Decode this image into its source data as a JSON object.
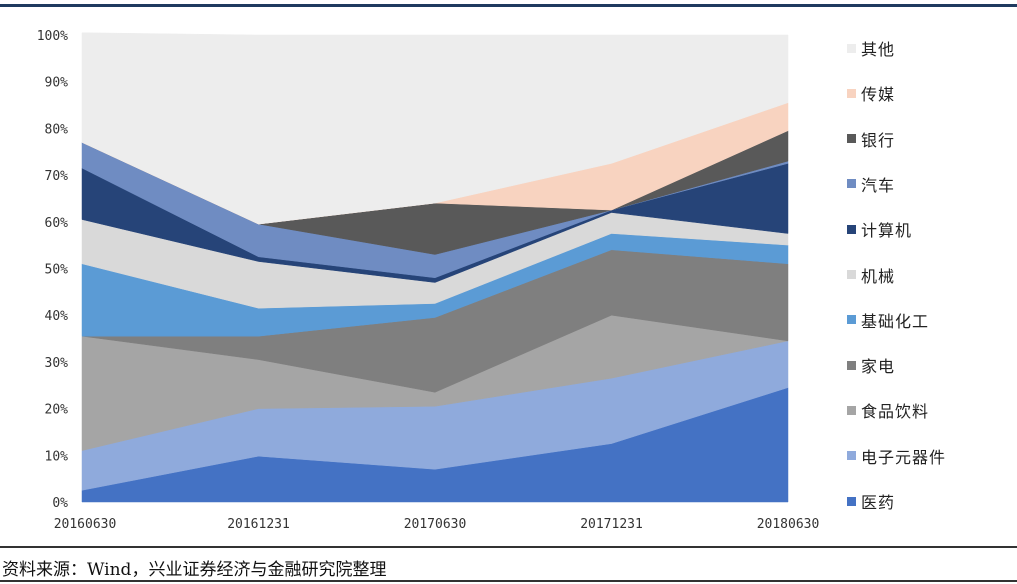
{
  "chart_data": {
    "type": "area",
    "stacked": true,
    "x": [
      "20160630",
      "20161231",
      "20170630",
      "20171231",
      "20180630"
    ],
    "yticks": [
      "0%",
      "10%",
      "20%",
      "30%",
      "40%",
      "50%",
      "60%",
      "70%",
      "80%",
      "90%",
      "100%"
    ],
    "ylim": [
      0,
      100
    ],
    "grid": false,
    "legend_position": "right",
    "series": [
      {
        "name": "医药",
        "color": "#4472c4",
        "values": [
          2.5,
          9.8,
          7,
          12.5,
          24.5
        ]
      },
      {
        "name": "电子元器件",
        "color": "#8faadc",
        "values": [
          8.5,
          10.2,
          13.5,
          14,
          10
        ]
      },
      {
        "name": "食品饮料",
        "color": "#a5a5a5",
        "values": [
          24.5,
          10.5,
          3,
          13.5,
          0
        ]
      },
      {
        "name": "家电",
        "color": "#7f7f7f",
        "values": [
          0,
          5,
          16,
          14,
          16.5
        ]
      },
      {
        "name": "基础化工",
        "color": "#5b9bd5",
        "values": [
          15.5,
          6,
          3,
          3.5,
          4
        ]
      },
      {
        "name": "机械",
        "color": "#d9d9d9",
        "values": [
          9.5,
          10,
          4.5,
          4.5,
          2.5
        ]
      },
      {
        "name": "计算机",
        "color": "#264478",
        "values": [
          11,
          1,
          1,
          0.5,
          15
        ]
      },
      {
        "name": "汽车",
        "color": "#6f8cc2",
        "values": [
          5.5,
          7,
          5,
          0,
          0.5
        ]
      },
      {
        "name": "银行",
        "color": "#595959",
        "values": [
          0,
          0,
          11,
          0,
          6.5
        ]
      },
      {
        "name": "传媒",
        "color": "#f8d3c0",
        "values": [
          0,
          0,
          0,
          10,
          6
        ]
      },
      {
        "name": "其他",
        "color": "#ededed",
        "values": [
          23.5,
          40.5,
          36,
          27.5,
          14.5
        ]
      }
    ]
  },
  "source_text": "资料来源：Wind，兴业证券经济与金融研究院整理"
}
